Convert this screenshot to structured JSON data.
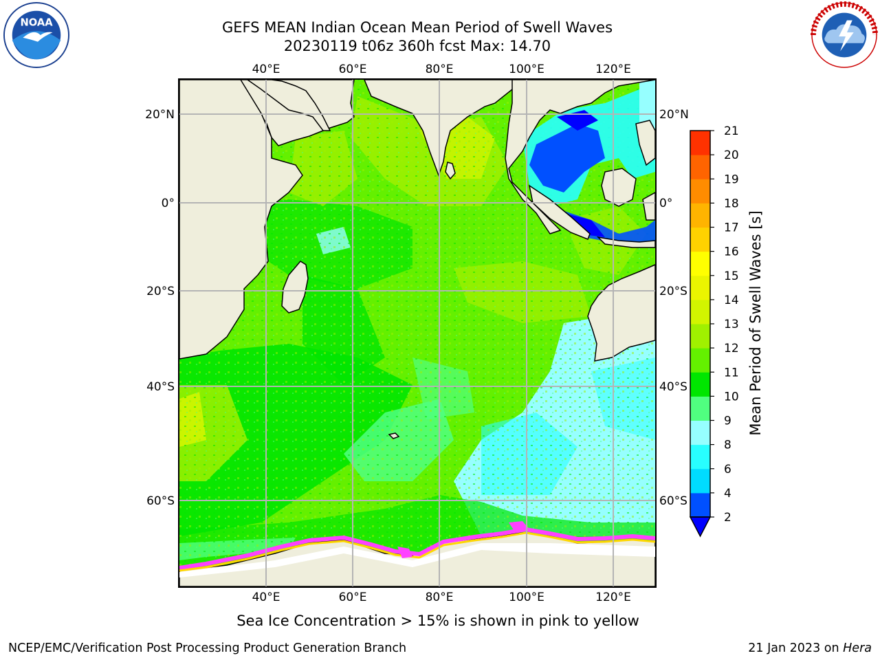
{
  "header": {
    "title_line1": "GEFS MEAN Indian Ocean Mean Period of Swell Waves",
    "title_line2": "20230119 t06z 360h fcst   Max: 14.70"
  },
  "logos": {
    "left": {
      "icon": "noaa-logo",
      "text": "NOAA"
    },
    "right": {
      "icon": "nws-logo",
      "text": "NATIONAL WEATHER SERVICE"
    }
  },
  "map": {
    "lon_labels": [
      "40°E",
      "60°E",
      "80°E",
      "100°E",
      "120°E"
    ],
    "lat_labels": [
      "20°N",
      "0°",
      "20°S",
      "40°S",
      "60°S"
    ],
    "land_color": "#efeedc",
    "grid_color": "#b4b4b4",
    "sea_ice_colors": [
      "#ff40ff",
      "#ffd700",
      "#ffffff"
    ]
  },
  "colorbar": {
    "label": "Mean Period of Swell Waves [s]",
    "ticks": [
      "2",
      "4",
      "6",
      "8",
      "9",
      "10",
      "11",
      "12",
      "13",
      "14",
      "15",
      "16",
      "17",
      "18",
      "19",
      "20",
      "21"
    ],
    "colors": [
      "#0050ff",
      "#00dcff",
      "#28ffff",
      "#96ffff",
      "#50ff80",
      "#00e600",
      "#64f000",
      "#a0f000",
      "#d2f500",
      "#ebf500",
      "#ffff00",
      "#ffd200",
      "#ffb400",
      "#ff8c00",
      "#ff6400",
      "#ff3200",
      "#ff0000"
    ],
    "extend_color": "#0000ff"
  },
  "caption": "Sea Ice Concentration > 15% is shown in pink to yellow",
  "footer": {
    "left": "NCEP/EMC/Verification Post Processing Product Generation Branch",
    "right_prefix": "21 Jan 2023 on ",
    "right_italic": "Hera"
  }
}
